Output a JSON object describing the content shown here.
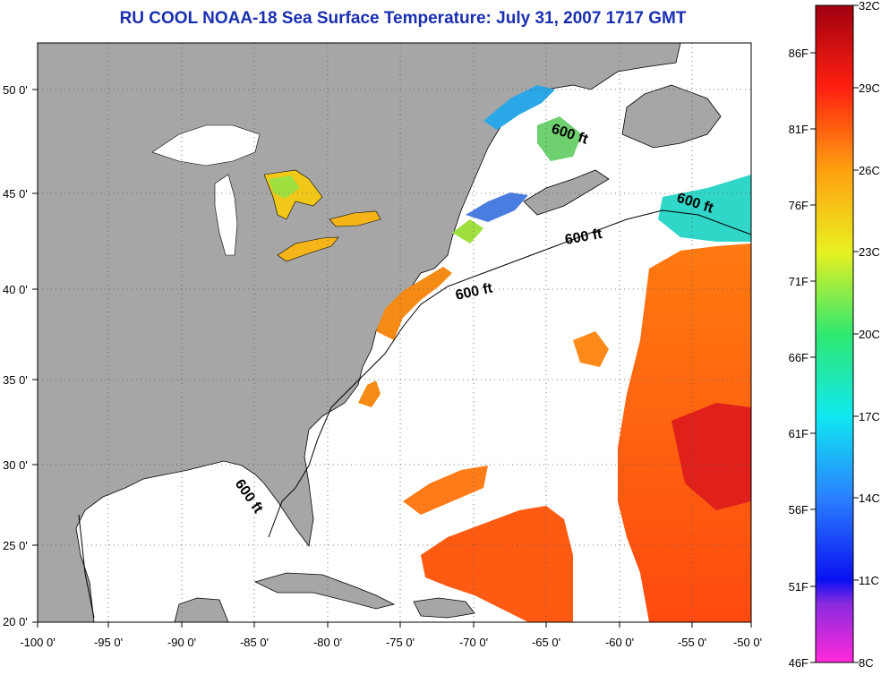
{
  "title": "RU COOL  NOAA-18  Sea Surface Temperature:  July 31, 2007 1717 GMT",
  "x_ticks": [
    "-100 0'",
    "-95 0'",
    "-90 0'",
    "-85 0'",
    "-80 0'",
    "-75 0'",
    "-70 0'",
    "-65 0'",
    "-60 0'",
    "-55 0'",
    "-50 0'"
  ],
  "y_ticks": [
    "50 0'",
    "45 0'",
    "40 0'",
    "35 0'",
    "30 0'",
    "25 0'",
    "20 0'"
  ],
  "depth_labels": [
    "600 ft",
    "600 ft",
    "600 ft",
    "600 ft",
    "600 ft"
  ],
  "colorbar": {
    "fahrenheit_labels": [
      "86F",
      "81F",
      "76F",
      "71F",
      "66F",
      "61F",
      "56F",
      "51F",
      "46F"
    ],
    "celsius_labels": [
      "32C",
      "29C",
      "26C",
      "23C",
      "20C",
      "17C",
      "14C",
      "11C",
      "8C"
    ],
    "range_c": [
      8,
      32
    ]
  },
  "colors": {
    "land": "#a6a6a6",
    "cloud_or_nodata": "#ffffff",
    "title": "#1a2fb0"
  }
}
